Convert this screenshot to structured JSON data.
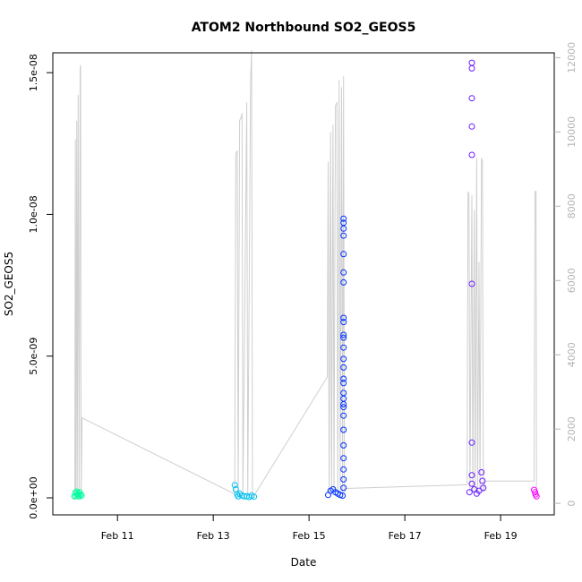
{
  "chart_data": {
    "type": "scatter",
    "title": "ATOM2 Northbound SO2_GEOS5",
    "xlabel": "Date",
    "ylabel": "SO2_GEOS5",
    "x_ticks": [
      "Feb 11",
      "Feb 13",
      "Feb 15",
      "Feb 17",
      "Feb 19"
    ],
    "x_tick_days": [
      11,
      13,
      15,
      17,
      19
    ],
    "xlim_days": [
      9.65,
      20.12
    ],
    "y_ticks": [
      "0.0e+00",
      "5.0e-09",
      "1.0e-08",
      "1.5e-08"
    ],
    "y_tick_values": [
      0,
      5e-09,
      1e-08,
      1.5e-08
    ],
    "ylim": [
      -6e-10,
      1.57e-08
    ],
    "y2_ticks": [
      "0",
      "2000",
      "4000",
      "6000",
      "8000",
      "10000",
      "12000"
    ],
    "y2_tick_values": [
      0,
      2000,
      4000,
      6000,
      8000,
      10000,
      12000
    ],
    "y2lim": [
      -310,
      12130
    ],
    "grid": false,
    "altitude_color": "#cfcfcf",
    "altitude_trace": [
      {
        "day": 10.11,
        "alt": 100
      },
      {
        "day": 10.12,
        "alt": 9800
      },
      {
        "day": 10.13,
        "alt": 100
      },
      {
        "day": 10.15,
        "alt": 10300
      },
      {
        "day": 10.16,
        "alt": 100
      },
      {
        "day": 10.18,
        "alt": 11000
      },
      {
        "day": 10.2,
        "alt": 100
      },
      {
        "day": 10.22,
        "alt": 11700
      },
      {
        "day": 10.23,
        "alt": 11800
      },
      {
        "day": 10.24,
        "alt": 100
      },
      {
        "day": 10.26,
        "alt": 2300
      },
      {
        "day": 13.45,
        "alt": 250
      },
      {
        "day": 13.47,
        "alt": 9400
      },
      {
        "day": 13.5,
        "alt": 9500
      },
      {
        "day": 13.52,
        "alt": 200
      },
      {
        "day": 13.55,
        "alt": 10300
      },
      {
        "day": 13.58,
        "alt": 10400
      },
      {
        "day": 13.6,
        "alt": 10500
      },
      {
        "day": 13.62,
        "alt": 200
      },
      {
        "day": 13.7,
        "alt": 10800
      },
      {
        "day": 13.72,
        "alt": 200
      },
      {
        "day": 13.78,
        "alt": 11400
      },
      {
        "day": 13.8,
        "alt": 12200
      },
      {
        "day": 13.82,
        "alt": 200
      },
      {
        "day": 13.85,
        "alt": 200
      },
      {
        "day": 15.38,
        "alt": 3400
      },
      {
        "day": 15.4,
        "alt": 9200
      },
      {
        "day": 15.42,
        "alt": 300
      },
      {
        "day": 15.45,
        "alt": 10000
      },
      {
        "day": 15.47,
        "alt": 300
      },
      {
        "day": 15.5,
        "alt": 10200
      },
      {
        "day": 15.52,
        "alt": 300
      },
      {
        "day": 15.55,
        "alt": 10700
      },
      {
        "day": 15.58,
        "alt": 10800
      },
      {
        "day": 15.6,
        "alt": 300
      },
      {
        "day": 15.63,
        "alt": 11400
      },
      {
        "day": 15.65,
        "alt": 300
      },
      {
        "day": 15.68,
        "alt": 11200
      },
      {
        "day": 15.7,
        "alt": 300
      },
      {
        "day": 15.72,
        "alt": 11500
      },
      {
        "day": 15.74,
        "alt": 300
      },
      {
        "day": 15.76,
        "alt": 400
      },
      {
        "day": 18.3,
        "alt": 500
      },
      {
        "day": 18.32,
        "alt": 8400
      },
      {
        "day": 18.34,
        "alt": 8300
      },
      {
        "day": 18.36,
        "alt": 300
      },
      {
        "day": 18.4,
        "alt": 8300
      },
      {
        "day": 18.42,
        "alt": 300
      },
      {
        "day": 18.45,
        "alt": 7900
      },
      {
        "day": 18.47,
        "alt": 300
      },
      {
        "day": 18.5,
        "alt": 9300
      },
      {
        "day": 18.52,
        "alt": 300
      },
      {
        "day": 18.55,
        "alt": 6500
      },
      {
        "day": 18.57,
        "alt": 300
      },
      {
        "day": 18.6,
        "alt": 9300
      },
      {
        "day": 18.62,
        "alt": 9200
      },
      {
        "day": 18.64,
        "alt": 300
      },
      {
        "day": 18.68,
        "alt": 600
      },
      {
        "day": 19.7,
        "alt": 600
      },
      {
        "day": 19.72,
        "alt": 8400
      },
      {
        "day": 19.74,
        "alt": 8400
      },
      {
        "day": 19.75,
        "alt": 200
      }
    ],
    "series": [
      {
        "color": "#00ffa0",
        "points": [
          {
            "day": 10.1,
            "y": 5e-11
          },
          {
            "day": 10.12,
            "y": 1.8e-10
          },
          {
            "day": 10.13,
            "y": 7e-11
          },
          {
            "day": 10.15,
            "y": 2.2e-10
          },
          {
            "day": 10.17,
            "y": 1e-10
          },
          {
            "day": 10.18,
            "y": 1.5e-10
          },
          {
            "day": 10.2,
            "y": 5e-11
          },
          {
            "day": 10.21,
            "y": 2e-10
          },
          {
            "day": 10.23,
            "y": 1.2e-10
          },
          {
            "day": 10.25,
            "y": 8e-11
          }
        ]
      },
      {
        "color": "#00c0f0",
        "points": [
          {
            "day": 13.45,
            "y": 4.5e-10
          },
          {
            "day": 13.47,
            "y": 3e-10
          },
          {
            "day": 13.5,
            "y": 1.2e-10
          },
          {
            "day": 13.52,
            "y": 5e-11
          },
          {
            "day": 13.55,
            "y": 1.5e-10
          },
          {
            "day": 13.6,
            "y": 8e-11
          },
          {
            "day": 13.65,
            "y": 5e-11
          },
          {
            "day": 13.7,
            "y": 6e-11
          },
          {
            "day": 13.75,
            "y": 3e-11
          },
          {
            "day": 13.8,
            "y": 8e-11
          },
          {
            "day": 13.85,
            "y": 4e-11
          }
        ]
      },
      {
        "color": "#0030ff",
        "points": [
          {
            "day": 15.4,
            "y": 1e-10
          },
          {
            "day": 15.45,
            "y": 2.5e-10
          },
          {
            "day": 15.5,
            "y": 3e-10
          },
          {
            "day": 15.55,
            "y": 2e-10
          },
          {
            "day": 15.6,
            "y": 1.5e-10
          },
          {
            "day": 15.65,
            "y": 1e-10
          },
          {
            "day": 15.7,
            "y": 8e-11
          },
          {
            "day": 15.72,
            "y": 9.85e-09
          },
          {
            "day": 15.72,
            "y": 9.7e-09
          },
          {
            "day": 15.72,
            "y": 9.5e-09
          },
          {
            "day": 15.72,
            "y": 9.25e-09
          },
          {
            "day": 15.72,
            "y": 8.6e-09
          },
          {
            "day": 15.72,
            "y": 7.95e-09
          },
          {
            "day": 15.72,
            "y": 7.6e-09
          },
          {
            "day": 15.72,
            "y": 6.35e-09
          },
          {
            "day": 15.72,
            "y": 6.2e-09
          },
          {
            "day": 15.72,
            "y": 5.75e-09
          },
          {
            "day": 15.72,
            "y": 5.65e-09
          },
          {
            "day": 15.72,
            "y": 5.3e-09
          },
          {
            "day": 15.72,
            "y": 4.9e-09
          },
          {
            "day": 15.72,
            "y": 4.6e-09
          },
          {
            "day": 15.72,
            "y": 4.2e-09
          },
          {
            "day": 15.72,
            "y": 4.05e-09
          },
          {
            "day": 15.72,
            "y": 3.7e-09
          },
          {
            "day": 15.72,
            "y": 3.5e-09
          },
          {
            "day": 15.72,
            "y": 3.3e-09
          },
          {
            "day": 15.72,
            "y": 3.2e-09
          },
          {
            "day": 15.72,
            "y": 2.9e-09
          },
          {
            "day": 15.72,
            "y": 2.4e-09
          },
          {
            "day": 15.72,
            "y": 1.85e-09
          },
          {
            "day": 15.72,
            "y": 1.4e-09
          },
          {
            "day": 15.72,
            "y": 1e-09
          },
          {
            "day": 15.72,
            "y": 6.5e-10
          },
          {
            "day": 15.72,
            "y": 3.5e-10
          }
        ]
      },
      {
        "color": "#6a1cff",
        "points": [
          {
            "day": 18.4,
            "y": 1.535e-08
          },
          {
            "day": 18.4,
            "y": 1.515e-08
          },
          {
            "day": 18.4,
            "y": 1.41e-08
          },
          {
            "day": 18.4,
            "y": 1.31e-08
          },
          {
            "day": 18.4,
            "y": 1.21e-08
          },
          {
            "day": 18.4,
            "y": 7.55e-09
          },
          {
            "day": 18.4,
            "y": 1.95e-09
          },
          {
            "day": 18.4,
            "y": 8e-10
          },
          {
            "day": 18.4,
            "y": 5e-10
          },
          {
            "day": 18.35,
            "y": 2e-10
          },
          {
            "day": 18.45,
            "y": 3e-10
          },
          {
            "day": 18.5,
            "y": 1.5e-10
          },
          {
            "day": 18.55,
            "y": 2.5e-10
          },
          {
            "day": 18.6,
            "y": 9e-10
          },
          {
            "day": 18.62,
            "y": 6e-10
          },
          {
            "day": 18.64,
            "y": 3.5e-10
          }
        ]
      },
      {
        "color": "#ff00ff",
        "points": [
          {
            "day": 19.7,
            "y": 2.8e-10
          },
          {
            "day": 19.72,
            "y": 2e-10
          },
          {
            "day": 19.73,
            "y": 1.2e-10
          },
          {
            "day": 19.75,
            "y": 5e-11
          }
        ]
      }
    ]
  }
}
